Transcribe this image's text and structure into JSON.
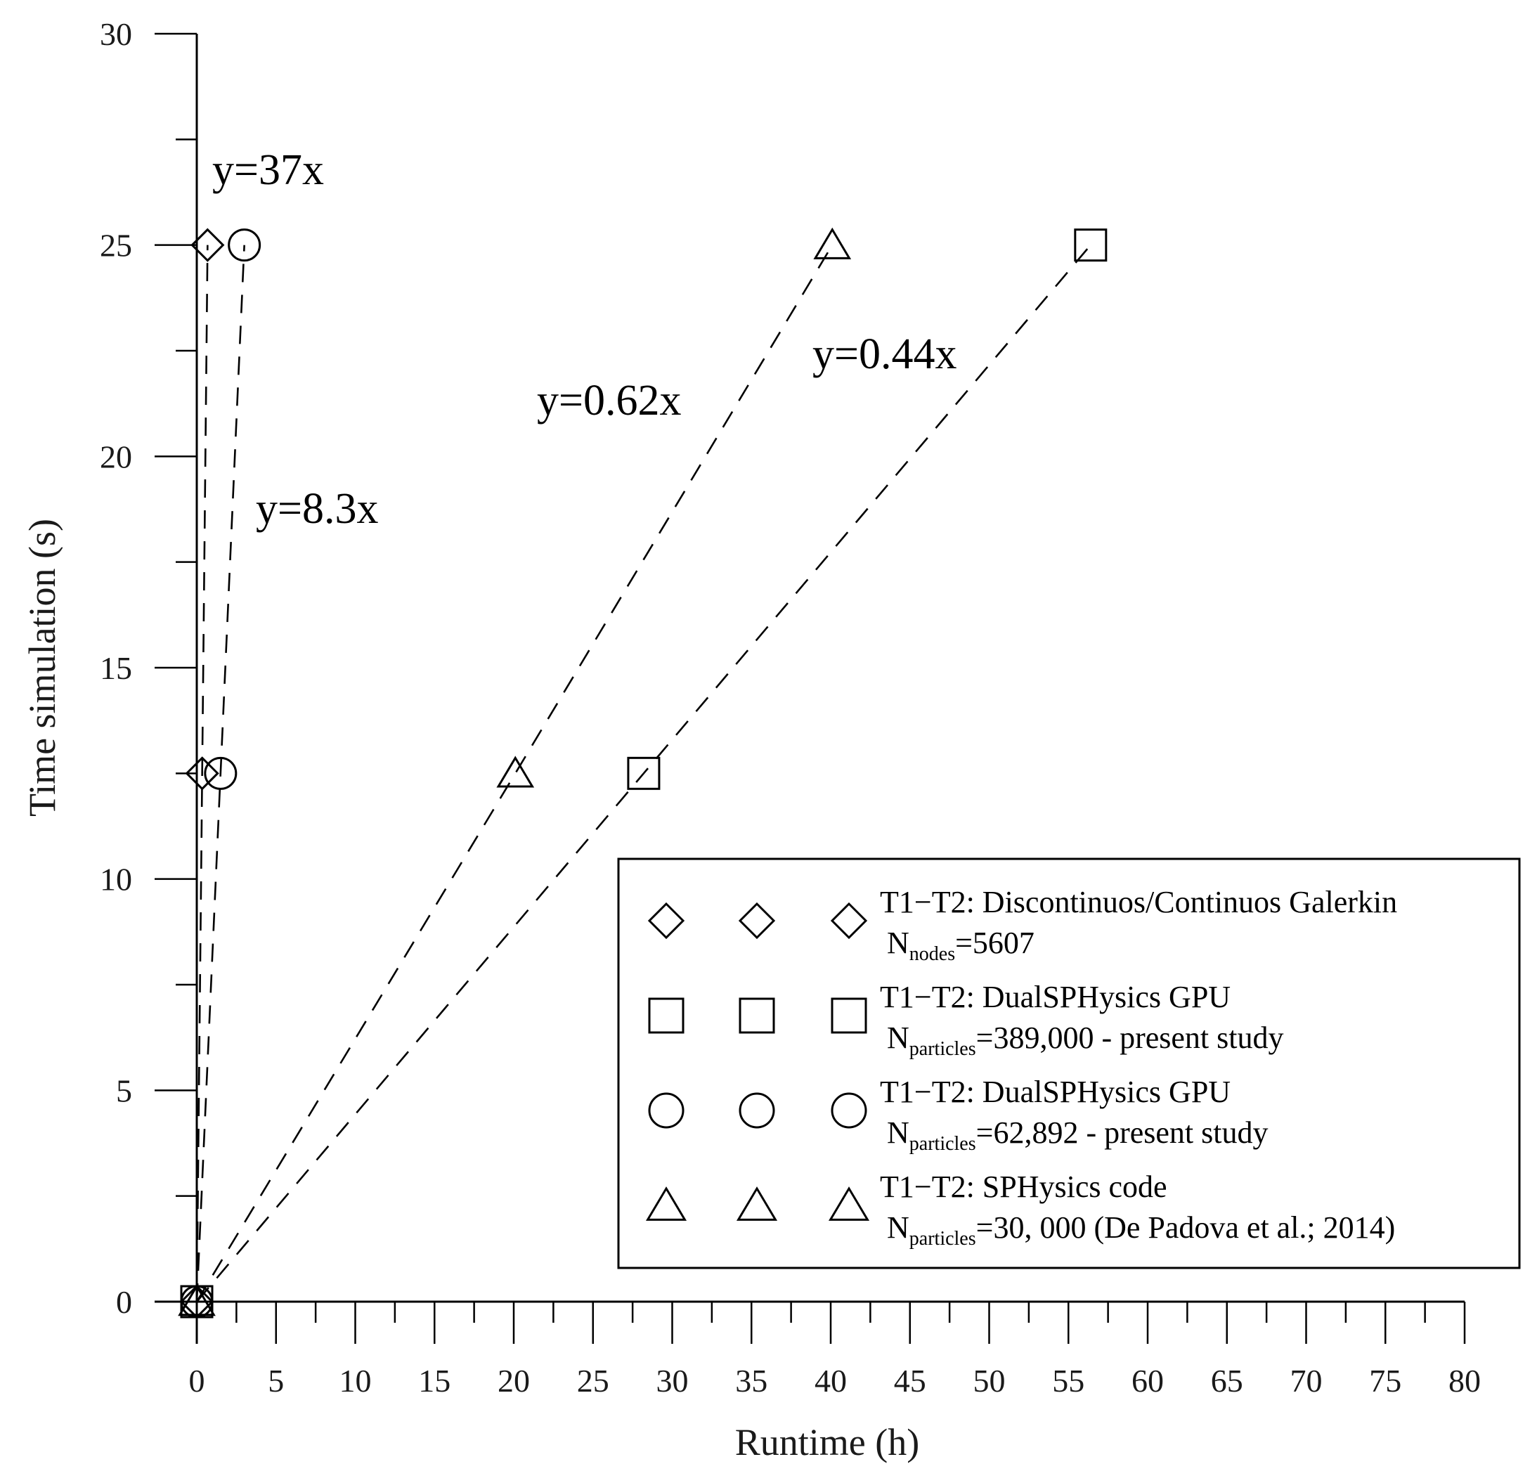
{
  "chart_data": {
    "type": "scatter",
    "xlabel": "Runtime (h)",
    "ylabel": "Time simulation (s)",
    "xlim": [
      0,
      80
    ],
    "ylim": [
      0,
      30
    ],
    "x_ticks": [
      0,
      5,
      10,
      15,
      20,
      25,
      30,
      35,
      40,
      45,
      50,
      55,
      60,
      65,
      70,
      75,
      80
    ],
    "y_ticks": [
      0,
      5,
      10,
      15,
      20,
      25,
      30
    ],
    "grid": false,
    "legend_position": "right",
    "series": [
      {
        "marker": "diamond",
        "label_line1": "T1−T2: Discontinuos/Continuos Galerkin",
        "label_line2_prefix": "N",
        "label_line2_sub": "nodes",
        "label_line2_rest": "=5607",
        "points": [
          [
            0,
            0
          ],
          [
            0.34,
            12.5
          ],
          [
            0.68,
            25
          ]
        ],
        "fit_label": "y=37x"
      },
      {
        "marker": "square",
        "label_line1": "T1−T2: DualSPHysics GPU",
        "label_line2_prefix": "N",
        "label_line2_sub": "particles",
        "label_line2_rest": "=389,000 - present study",
        "points": [
          [
            0,
            0
          ],
          [
            28.2,
            12.5
          ],
          [
            56.4,
            25
          ]
        ],
        "fit_label": "y=0.44x"
      },
      {
        "marker": "circle",
        "label_line1": "T1−T2: DualSPHysics GPU",
        "label_line2_prefix": "N",
        "label_line2_sub": "particles",
        "label_line2_rest": "=62,892 - present study",
        "points": [
          [
            0,
            0
          ],
          [
            1.5,
            12.5
          ],
          [
            3.0,
            25
          ]
        ],
        "fit_label": "y=8.3x"
      },
      {
        "marker": "triangle",
        "label_line1": "T1−T2: SPHysics code",
        "label_line2_prefix": "N",
        "label_line2_sub": "particles",
        "label_line2_rest": "=30, 000 (De Padova et al.; 2014)",
        "points": [
          [
            0,
            0
          ],
          [
            20.1,
            12.5
          ],
          [
            40.1,
            25
          ]
        ],
        "fit_label": "y=0.62x"
      }
    ]
  }
}
